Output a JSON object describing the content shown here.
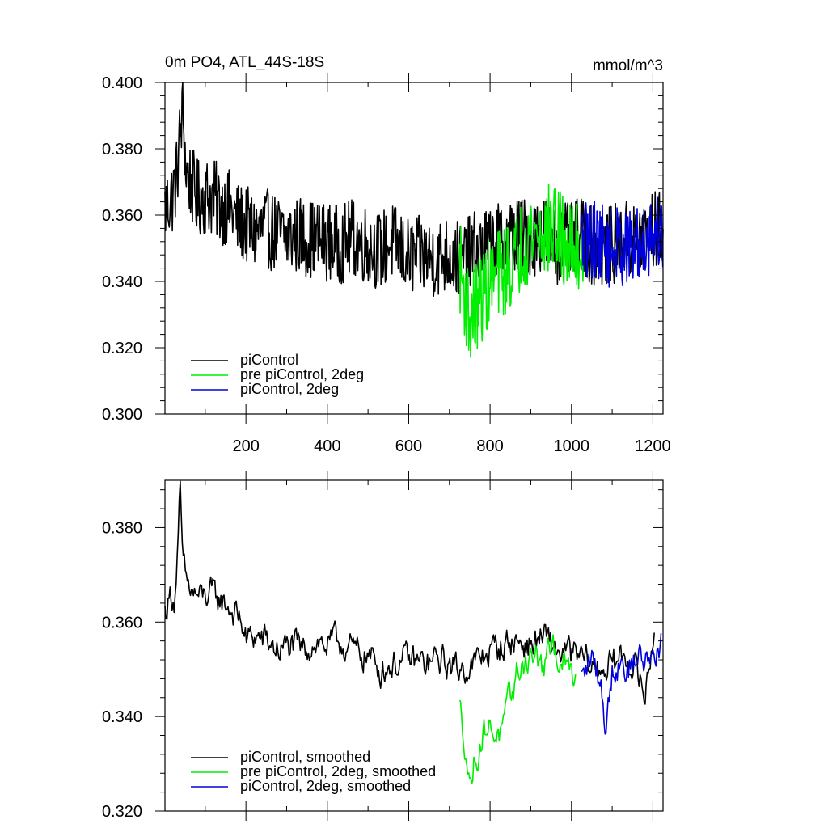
{
  "figure": {
    "left_title": "0m PO4, ATL_44S-18S",
    "right_title": "mmol/m^3"
  },
  "chart_data": [
    {
      "type": "line",
      "xlim": [
        1,
        1225
      ],
      "ylim": [
        0.3,
        0.4
      ],
      "xticks": [
        200,
        400,
        600,
        800,
        1000,
        1200
      ],
      "xtick_labels": [
        "200",
        "400",
        "600",
        "800",
        "1000",
        "1200"
      ],
      "yticks": [
        0.3,
        0.32,
        0.34,
        0.36,
        0.38,
        0.4
      ],
      "ytick_labels": [
        "0.300",
        "0.320",
        "0.340",
        "0.360",
        "0.380",
        "0.400"
      ],
      "legend_position": "lower-left",
      "series": [
        {
          "name": "piControl",
          "color": "#000000",
          "x_range": [
            1,
            1225
          ],
          "points": [
            [
              1,
              0.362
            ],
            [
              20,
              0.366
            ],
            [
              30,
              0.372
            ],
            [
              38,
              0.384
            ],
            [
              45,
              0.392
            ],
            [
              52,
              0.374
            ],
            [
              60,
              0.371
            ],
            [
              80,
              0.365
            ],
            [
              100,
              0.366
            ],
            [
              120,
              0.365
            ],
            [
              140,
              0.363
            ],
            [
              160,
              0.362
            ],
            [
              180,
              0.358
            ],
            [
              200,
              0.357
            ],
            [
              220,
              0.355
            ],
            [
              250,
              0.356
            ],
            [
              280,
              0.354
            ],
            [
              300,
              0.353
            ],
            [
              330,
              0.354
            ],
            [
              360,
              0.353
            ],
            [
              400,
              0.352
            ],
            [
              430,
              0.351
            ],
            [
              460,
              0.353
            ],
            [
              500,
              0.351
            ],
            [
              530,
              0.349
            ],
            [
              560,
              0.352
            ],
            [
              600,
              0.347
            ],
            [
              630,
              0.348
            ],
            [
              660,
              0.347
            ],
            [
              700,
              0.348
            ],
            [
              730,
              0.346
            ],
            [
              760,
              0.349
            ],
            [
              800,
              0.351
            ],
            [
              830,
              0.352
            ],
            [
              860,
              0.354
            ],
            [
              900,
              0.353
            ],
            [
              930,
              0.355
            ],
            [
              960,
              0.351
            ],
            [
              1000,
              0.352
            ],
            [
              1030,
              0.354
            ],
            [
              1060,
              0.349
            ],
            [
              1100,
              0.351
            ],
            [
              1130,
              0.353
            ],
            [
              1160,
              0.352
            ],
            [
              1190,
              0.355
            ],
            [
              1225,
              0.356
            ]
          ],
          "noise_amplitude": 0.012
        },
        {
          "name": "pre piControl, 2deg",
          "color": "#00ee00",
          "x_range": [
            725,
            1030
          ],
          "points": [
            [
              725,
              0.345
            ],
            [
              740,
              0.335
            ],
            [
              750,
              0.328
            ],
            [
              765,
              0.332
            ],
            [
              785,
              0.337
            ],
            [
              800,
              0.34
            ],
            [
              830,
              0.343
            ],
            [
              860,
              0.346
            ],
            [
              880,
              0.352
            ],
            [
              900,
              0.354
            ],
            [
              930,
              0.355
            ],
            [
              960,
              0.356
            ],
            [
              980,
              0.352
            ],
            [
              1000,
              0.35
            ],
            [
              1030,
              0.349
            ]
          ],
          "noise_amplitude": 0.014
        },
        {
          "name": "piControl, 2deg",
          "color": "#0000dd",
          "x_range": [
            1025,
            1225
          ],
          "points": [
            [
              1025,
              0.352
            ],
            [
              1060,
              0.353
            ],
            [
              1090,
              0.35
            ],
            [
              1120,
              0.351
            ],
            [
              1150,
              0.349
            ],
            [
              1180,
              0.353
            ],
            [
              1210,
              0.355
            ],
            [
              1225,
              0.355
            ]
          ],
          "noise_amplitude": 0.012
        }
      ]
    },
    {
      "type": "line",
      "xlim": [
        1,
        1225
      ],
      "ylim": [
        0.32,
        0.39
      ],
      "yticks": [
        0.32,
        0.34,
        0.36,
        0.38
      ],
      "ytick_labels": [
        "0.320",
        "0.340",
        "0.360",
        "0.380"
      ],
      "legend_position": "lower-left",
      "series": [
        {
          "name": "piControl, smoothed",
          "color": "#000000",
          "x_range": [
            1,
            1205
          ],
          "points": [
            [
              1,
              0.362
            ],
            [
              15,
              0.366
            ],
            [
              25,
              0.365
            ],
            [
              33,
              0.376
            ],
            [
              38,
              0.387
            ],
            [
              45,
              0.372
            ],
            [
              55,
              0.368
            ],
            [
              70,
              0.366
            ],
            [
              90,
              0.365
            ],
            [
              110,
              0.366
            ],
            [
              130,
              0.365
            ],
            [
              150,
              0.364
            ],
            [
              170,
              0.362
            ],
            [
              190,
              0.36
            ],
            [
              200,
              0.356
            ],
            [
              220,
              0.357
            ],
            [
              250,
              0.356
            ],
            [
              280,
              0.354
            ],
            [
              310,
              0.355
            ],
            [
              340,
              0.354
            ],
            [
              370,
              0.356
            ],
            [
              400,
              0.355
            ],
            [
              430,
              0.356
            ],
            [
              460,
              0.354
            ],
            [
              500,
              0.353
            ],
            [
              530,
              0.35
            ],
            [
              560,
              0.351
            ],
            [
              600,
              0.352
            ],
            [
              640,
              0.351
            ],
            [
              680,
              0.352
            ],
            [
              720,
              0.35
            ],
            [
              760,
              0.351
            ],
            [
              800,
              0.354
            ],
            [
              830,
              0.355
            ],
            [
              860,
              0.356
            ],
            [
              900,
              0.355
            ],
            [
              930,
              0.357
            ],
            [
              960,
              0.354
            ],
            [
              1000,
              0.353
            ],
            [
              1030,
              0.352
            ],
            [
              1060,
              0.35
            ],
            [
              1100,
              0.351
            ],
            [
              1130,
              0.353
            ],
            [
              1160,
              0.35
            ],
            [
              1180,
              0.344
            ],
            [
              1205,
              0.36
            ]
          ],
          "noise_amplitude": 0.006
        },
        {
          "name": "pre piControl, 2deg, smoothed",
          "color": "#00ee00",
          "x_range": [
            725,
            1010
          ],
          "points": [
            [
              725,
              0.342
            ],
            [
              740,
              0.334
            ],
            [
              750,
              0.325
            ],
            [
              760,
              0.33
            ],
            [
              775,
              0.334
            ],
            [
              790,
              0.338
            ],
            [
              810,
              0.337
            ],
            [
              830,
              0.336
            ],
            [
              850,
              0.344
            ],
            [
              870,
              0.35
            ],
            [
              890,
              0.352
            ],
            [
              910,
              0.353
            ],
            [
              930,
              0.35
            ],
            [
              950,
              0.354
            ],
            [
              970,
              0.353
            ],
            [
              990,
              0.35
            ],
            [
              1010,
              0.349
            ]
          ],
          "noise_amplitude": 0.006
        },
        {
          "name": "piControl, 2deg, smoothed",
          "color": "#0000dd",
          "x_range": [
            1025,
            1222
          ],
          "points": [
            [
              1025,
              0.348
            ],
            [
              1050,
              0.352
            ],
            [
              1070,
              0.348
            ],
            [
              1085,
              0.338
            ],
            [
              1100,
              0.35
            ],
            [
              1120,
              0.352
            ],
            [
              1140,
              0.35
            ],
            [
              1160,
              0.353
            ],
            [
              1180,
              0.352
            ],
            [
              1200,
              0.353
            ],
            [
              1222,
              0.356
            ]
          ],
          "noise_amplitude": 0.006
        }
      ]
    }
  ]
}
